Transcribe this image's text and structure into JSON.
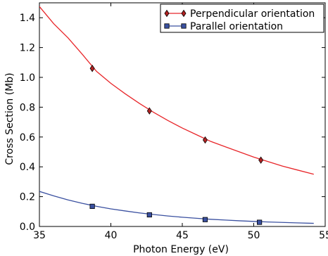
{
  "chart_data": {
    "type": "line",
    "title": "",
    "xlabel": "Photon Energy (eV)",
    "ylabel": "Cross Section (Mb)",
    "xlim": [
      35,
      55
    ],
    "ylim": [
      0.0,
      1.5
    ],
    "xticks": [
      35,
      40,
      45,
      50,
      55
    ],
    "xtick_labels": [
      "35",
      "40",
      "45",
      "50",
      "55"
    ],
    "yticks": [
      0.0,
      0.2,
      0.4,
      0.6,
      0.8,
      1.0,
      1.2,
      1.4
    ],
    "ytick_labels": [
      "0.0",
      "0.2",
      "0.4",
      "0.6",
      "0.8",
      "1.0",
      "1.2",
      "1.4"
    ],
    "grid": false,
    "legend_position": "top-right",
    "series": [
      {
        "name": "Perpendicular orientation",
        "color": "#e8262a",
        "marker": "diamond",
        "marker_color": "#b22222",
        "points": [
          {
            "x": 38.7,
            "y": 1.06
          },
          {
            "x": 42.7,
            "y": 0.775
          },
          {
            "x": 46.6,
            "y": 0.58
          },
          {
            "x": 50.5,
            "y": 0.445
          }
        ],
        "fit_curve": {
          "x": [
            35,
            36,
            37,
            38,
            39,
            40,
            41,
            42,
            43,
            44,
            45,
            46,
            47,
            48,
            49,
            50,
            51,
            52,
            53,
            54.2
          ],
          "y": [
            1.475,
            1.36,
            1.265,
            1.155,
            1.04,
            0.96,
            0.89,
            0.825,
            0.765,
            0.71,
            0.66,
            0.615,
            0.57,
            0.535,
            0.5,
            0.465,
            0.435,
            0.405,
            0.38,
            0.35
          ]
        }
      },
      {
        "name": "Parallel orientation",
        "color": "#3a50a0",
        "marker": "square",
        "marker_color": "#3a50a0",
        "points": [
          {
            "x": 38.7,
            "y": 0.135
          },
          {
            "x": 42.7,
            "y": 0.078
          },
          {
            "x": 46.6,
            "y": 0.046
          },
          {
            "x": 50.4,
            "y": 0.028
          }
        ],
        "fit_curve": {
          "x": [
            35,
            36,
            37,
            38,
            39,
            40,
            41,
            42,
            43,
            44,
            45,
            46,
            47,
            48,
            49,
            50,
            51,
            52,
            53,
            54.2
          ],
          "y": [
            0.235,
            0.205,
            0.178,
            0.155,
            0.135,
            0.118,
            0.104,
            0.091,
            0.08,
            0.07,
            0.062,
            0.055,
            0.048,
            0.043,
            0.038,
            0.034,
            0.03,
            0.027,
            0.024,
            0.021
          ]
        }
      }
    ]
  }
}
